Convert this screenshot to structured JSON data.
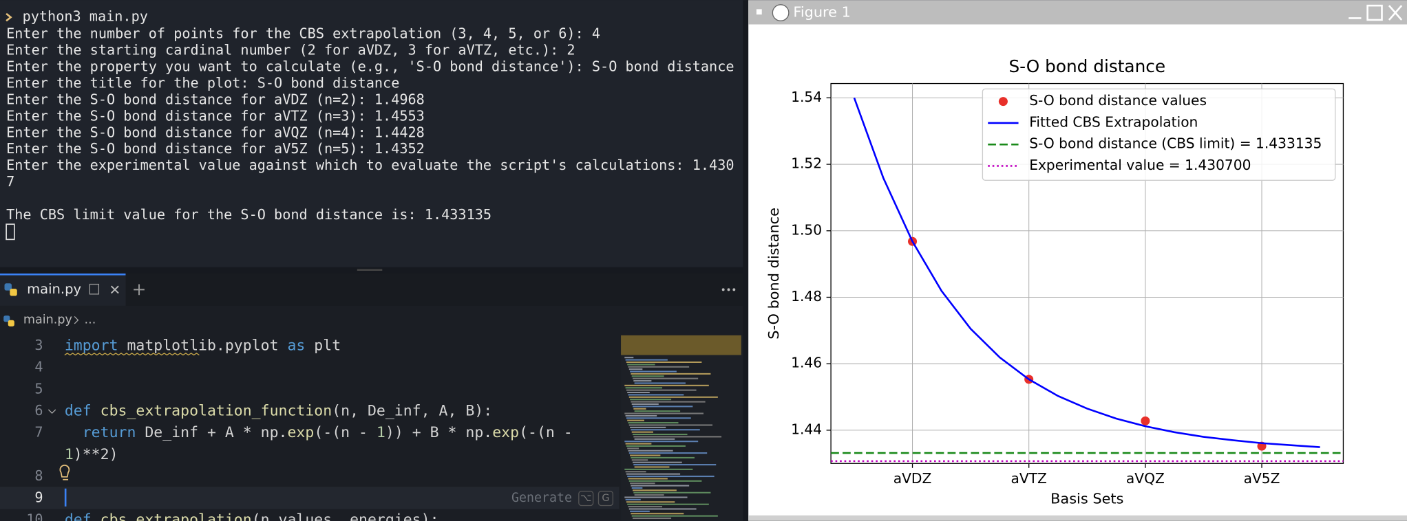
{
  "terminal": {
    "command": "python3 main.py",
    "lines": [
      "Enter the number of points for the CBS extrapolation (3, 4, 5, or 6): 4",
      "Enter the starting cardinal number (2 for aVDZ, 3 for aVTZ, etc.): 2",
      "Enter the property you want to calculate (e.g., 'S-O bond distance'): S-O bond distance",
      "Enter the title for the plot: S-O bond distance",
      "Enter the S-O bond distance for aVDZ (n=2): 1.4968",
      "Enter the S-O bond distance for aVTZ (n=3): 1.4553",
      "Enter the S-O bond distance for aVQZ (n=4): 1.4428",
      "Enter the S-O bond distance for aV5Z (n=5): 1.4352",
      "Enter the experimental value against which to evaluate the script's calculations: 1.430",
      "7"
    ],
    "output": "The CBS limit value for the S-O bond distance is: 1.433135"
  },
  "editor": {
    "tab": "main.py",
    "breadcrumb": [
      "main.py",
      "..."
    ],
    "generate_hint": {
      "label": "Generate",
      "keys": [
        "⌥",
        "G"
      ]
    },
    "lines": [
      {
        "number": 3,
        "rows": [
          [
            {
              "text": "import",
              "color": "#569cd6"
            },
            {
              "text": " matplotlib.pyplot ",
              "color": "#d4d4d4"
            },
            {
              "text": "as",
              "color": "#569cd6"
            },
            {
              "text": " plt",
              "color": "#d4d4d4"
            }
          ]
        ]
      },
      {
        "number": 4,
        "rows": []
      },
      {
        "number": 5,
        "rows": []
      },
      {
        "number": 6,
        "rows": [
          [
            {
              "text": "def",
              "color": "#569cd6"
            },
            {
              "text": " cbs_extrapolation_function",
              "color": "#dcdcaa"
            },
            {
              "text": "(n, De_inf, A, B):",
              "color": "#d4d4d4"
            }
          ]
        ]
      },
      {
        "number": 7,
        "rows": [
          [
            {
              "text": "  return",
              "color": "#569cd6"
            },
            {
              "text": " De_inf + A * np.",
              "color": "#d4d4d4"
            },
            {
              "text": "exp",
              "color": "#dcdcaa"
            },
            {
              "text": "(-(n - ",
              "color": "#d4d4d4"
            },
            {
              "text": "1",
              "color": "#b5cea8"
            },
            {
              "text": ")) + B * np.",
              "color": "#d4d4d4"
            },
            {
              "text": "exp",
              "color": "#dcdcaa"
            },
            {
              "text": "(-(n -",
              "color": "#d4d4d4"
            }
          ],
          [
            {
              "text": "1",
              "color": "#b5cea8"
            },
            {
              "text": ")**2)",
              "color": "#d4d4d4"
            }
          ]
        ]
      },
      {
        "number": 8,
        "rows": []
      },
      {
        "number": 9,
        "rows": []
      },
      {
        "number": 10,
        "rows": [
          [
            {
              "text": "def",
              "color": "#569cd6"
            },
            {
              "text": " cbs_extrapolation",
              "color": "#dcdcaa"
            },
            {
              "text": "(n_values, energies):",
              "color": "#d4d4d4"
            }
          ]
        ]
      }
    ]
  },
  "window": {
    "title": "Figure 1"
  },
  "chart_data": {
    "type": "line",
    "title": "S-O bond distance",
    "x_label": "Basis Sets",
    "y_label": "S-O bond distance",
    "xlim": [
      1.3,
      5.7
    ],
    "ylim": [
      1.43,
      1.5443
    ],
    "xticks": [
      {
        "value": 2,
        "label": "aVDZ"
      },
      {
        "value": 3,
        "label": "aVTZ"
      },
      {
        "value": 4,
        "label": "aVQZ"
      },
      {
        "value": 5,
        "label": "aV5Z"
      }
    ],
    "yticks": [
      1.44,
      1.46,
      1.48,
      {
        "value": 1.5,
        "label": "1.50"
      },
      1.52,
      1.54
    ],
    "grid": true,
    "legend": "upper right",
    "series": [
      {
        "name": "S-O bond distance values",
        "type": "scatter",
        "color": "#e8302a",
        "x": [
          2,
          3,
          4,
          5
        ],
        "values": [
          1.4968,
          1.4553,
          1.4428,
          1.4352
        ]
      },
      {
        "name": "Fitted CBS Extrapolation",
        "type": "line",
        "color": "#0000ff",
        "x": [
          1.5,
          1.75,
          2,
          2.25,
          2.5,
          2.75,
          3,
          3.25,
          3.5,
          3.75,
          4,
          4.25,
          4.5,
          4.75,
          5,
          5.25,
          5.5
        ],
        "values": [
          1.54,
          1.5159,
          1.4968,
          1.4819,
          1.4705,
          1.4619,
          1.4553,
          1.4503,
          1.4465,
          1.4435,
          1.4412,
          1.4394,
          1.438,
          1.437,
          1.4361,
          1.4355,
          1.4349
        ]
      },
      {
        "name": "S-O bond distance (CBS limit) = 1.433135",
        "type": "hline",
        "dash": "dashed",
        "color": "#1a8a1a",
        "value": 1.433135
      },
      {
        "name": "Experimental value = 1.430700",
        "type": "hline",
        "dash": "dotted",
        "color": "#c000c0",
        "value": 1.4307
      }
    ]
  }
}
